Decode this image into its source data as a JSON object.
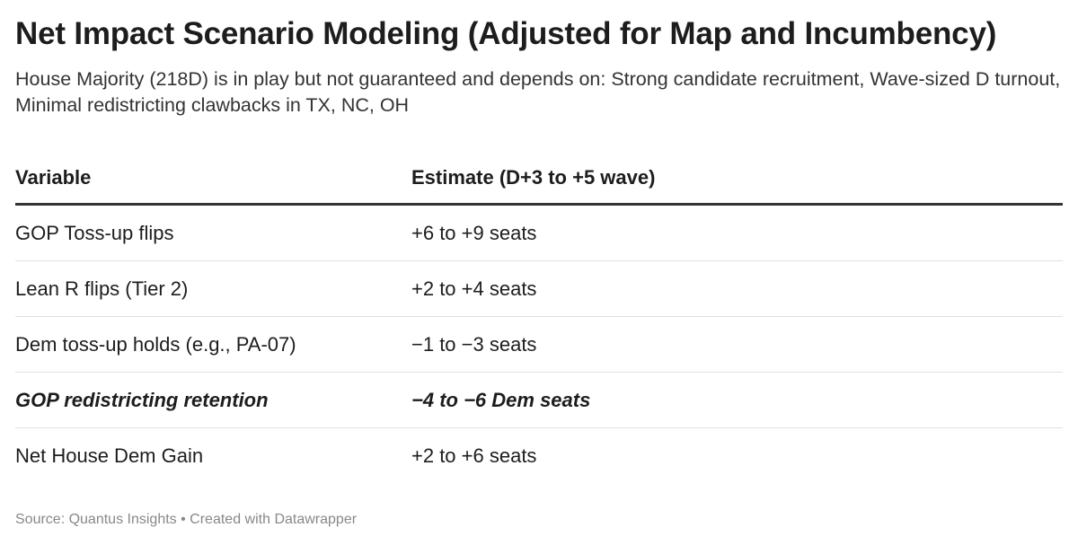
{
  "title": "Net Impact Scenario Modeling (Adjusted for Map and Incumbency)",
  "subtitle": "House Majority (218D) is in play but not guaranteed and depends on: Strong candidate recruitment, Wave-sized D turnout, Minimal redistricting clawbacks in TX, NC, OH",
  "chart_data": {
    "type": "table",
    "columns": [
      "Variable",
      "Estimate (D+3 to +5 wave)"
    ],
    "rows": [
      {
        "variable": "GOP Toss-up flips",
        "estimate": "+6 to +9 seats",
        "emphasis": false
      },
      {
        "variable": "Lean R flips (Tier 2)",
        "estimate": "+2 to +4 seats",
        "emphasis": false
      },
      {
        "variable": "Dem toss-up holds (e.g., PA-07)",
        "estimate": "−1 to −3 seats",
        "emphasis": false
      },
      {
        "variable": "GOP redistricting retention",
        "estimate": "−4 to −6 Dem seats",
        "emphasis": true
      },
      {
        "variable": "Net House Dem Gain",
        "estimate": "+2 to +6 seats",
        "emphasis": false
      }
    ]
  },
  "footer": {
    "source": "Source: Quantus Insights",
    "separator": "•",
    "credit": "Created with Datawrapper"
  }
}
